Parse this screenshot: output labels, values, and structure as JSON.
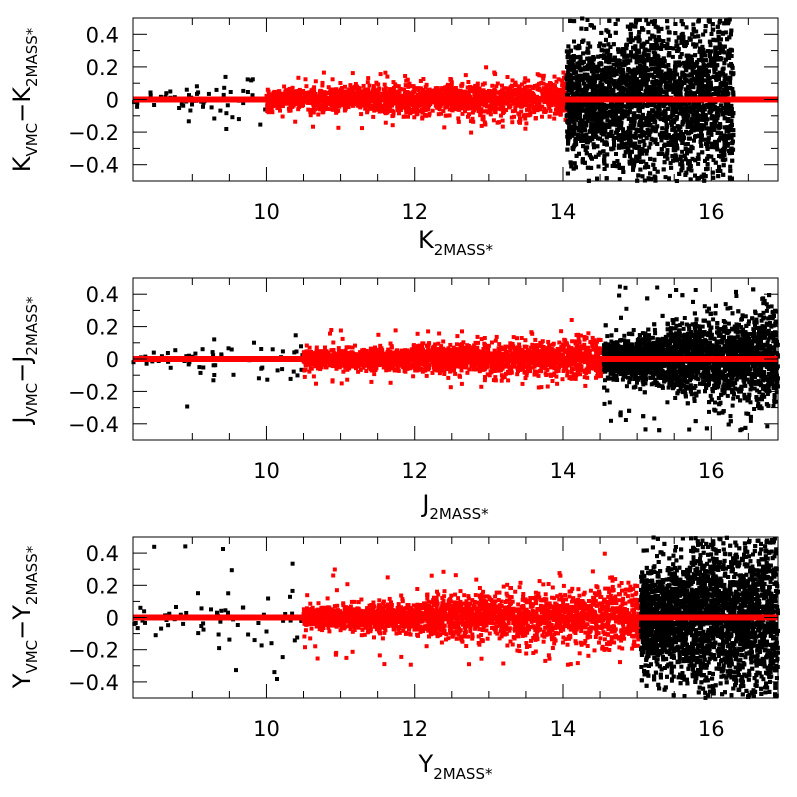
{
  "colors": {
    "background": "#ffffff",
    "axes": "#000000",
    "bright_sources": "#ff0000",
    "faint_sources": "#000000",
    "zero_line": "#ff0000"
  },
  "chart_data": [
    {
      "type": "scatter",
      "panel": "top",
      "xlabel": {
        "main": "K",
        "sub": "2MASS*"
      },
      "ylabel": {
        "main1": "K",
        "sub1": "VMC",
        "minus": "−",
        "main2": "K",
        "sub2": "2MASS*"
      },
      "xlim": [
        8.2,
        16.9
      ],
      "ylim": [
        -0.5,
        0.5
      ],
      "xticks": [
        10,
        12,
        14,
        16
      ],
      "xtick_labels": [
        "10",
        "12",
        "14",
        "16"
      ],
      "yticks": [
        0.4,
        0.2,
        0,
        -0.2,
        -0.4
      ],
      "ytick_labels": [
        "0.4",
        "0.2",
        "0",
        "−0.2",
        "−0.4"
      ],
      "zero_line": {
        "y": 0,
        "x_range": [
          8.2,
          16.9
        ]
      },
      "series": [
        {
          "color": "#000000",
          "x_range": [
            8.2,
            10.0
          ],
          "spread": [
            0.04,
            0.18
          ],
          "n": 60
        },
        {
          "color": "#ff0000",
          "x_range": [
            10.0,
            14.05
          ],
          "spread": [
            0.06,
            0.12
          ],
          "n": 2000
        },
        {
          "color": "#000000",
          "x_range": [
            14.05,
            16.3
          ],
          "spread": [
            0.35,
            0.55
          ],
          "n": 5000
        }
      ]
    },
    {
      "type": "scatter",
      "panel": "middle",
      "xlabel": {
        "main": "J",
        "sub": "2MASS*"
      },
      "ylabel": {
        "main1": "J",
        "sub1": "VMC",
        "minus": "−",
        "main2": "J",
        "sub2": "2MASS*"
      },
      "xlim": [
        8.2,
        16.9
      ],
      "ylim": [
        -0.5,
        0.5
      ],
      "xticks": [
        10,
        12,
        14,
        16
      ],
      "xtick_labels": [
        "10",
        "12",
        "14",
        "16"
      ],
      "yticks": [
        0.4,
        0.2,
        0,
        -0.2,
        -0.4
      ],
      "ytick_labels": [
        "0.4",
        "0.2",
        "0",
        "−0.2",
        "−0.4"
      ],
      "zero_line": {
        "y": 0,
        "x_range": [
          8.2,
          16.9
        ]
      },
      "series": [
        {
          "color": "#000000",
          "x_range": [
            8.2,
            10.5
          ],
          "spread": [
            0.03,
            0.2
          ],
          "n": 70
        },
        {
          "color": "#ff0000",
          "x_range": [
            10.5,
            14.55
          ],
          "spread": [
            0.05,
            0.12
          ],
          "n": 2200
        },
        {
          "color": "#000000",
          "x_range": [
            14.55,
            16.9
          ],
          "spread": [
            0.1,
            0.3
          ],
          "n": 4000
        }
      ]
    },
    {
      "type": "scatter",
      "panel": "bottom",
      "xlabel": {
        "main": "Y",
        "sub": "2MASS*"
      },
      "ylabel": {
        "main1": "Y",
        "sub1": "VMC",
        "minus": "−",
        "main2": "Y",
        "sub2": "2MASS*"
      },
      "xlim": [
        8.2,
        16.9
      ],
      "ylim": [
        -0.5,
        0.5
      ],
      "xticks": [
        10,
        12,
        14,
        16
      ],
      "xtick_labels": [
        "10",
        "12",
        "14",
        "16"
      ],
      "yticks": [
        0.4,
        0.2,
        0,
        -0.2,
        -0.4
      ],
      "ytick_labels": [
        "0.4",
        "0.2",
        "0",
        "−0.2",
        "−0.4"
      ],
      "zero_line": {
        "y": 0,
        "x_range": [
          8.2,
          16.9
        ]
      },
      "series": [
        {
          "color": "#000000",
          "x_range": [
            8.2,
            10.5
          ],
          "spread": [
            0.05,
            0.3
          ],
          "n": 70
        },
        {
          "color": "#ff0000",
          "x_range": [
            10.5,
            15.05
          ],
          "spread": [
            0.06,
            0.2
          ],
          "n": 2500
        },
        {
          "color": "#000000",
          "x_range": [
            15.05,
            16.9
          ],
          "spread": [
            0.3,
            0.55
          ],
          "n": 5000
        }
      ]
    }
  ]
}
